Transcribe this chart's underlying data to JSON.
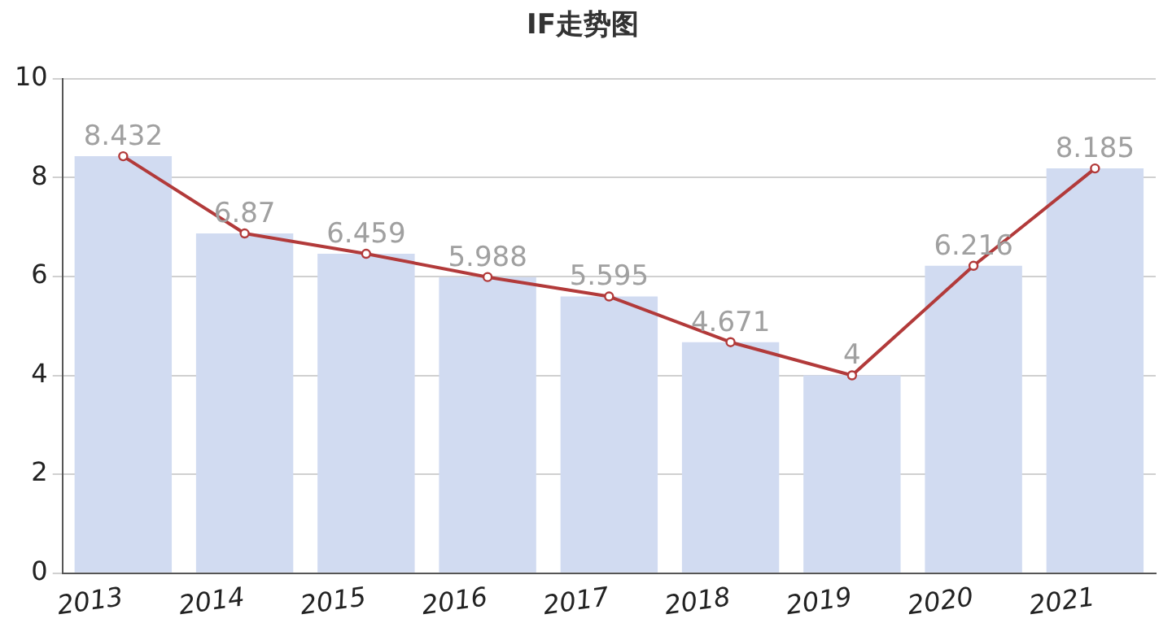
{
  "chart_data": {
    "type": "bar",
    "title": "IF走势图",
    "categories": [
      "2013",
      "2014",
      "2015",
      "2016",
      "2017",
      "2018",
      "2019",
      "2020",
      "2021"
    ],
    "series": [
      {
        "color": "#d1dbf1",
        "values": [
          8.432,
          6.87,
          6.459,
          5.988,
          5.595,
          4.671,
          4,
          6.216,
          8.185
        ],
        "value_labels": [
          "8.432",
          "6.87",
          "6.459",
          "5.988",
          "5.595",
          "4.671",
          "4",
          "6.216",
          "8.185"
        ]
      },
      {
        "type": "line",
        "color": "#b23a3a",
        "values": [
          8.432,
          6.87,
          6.459,
          5.988,
          5.595,
          4.671,
          4,
          6.216,
          8.185
        ]
      }
    ],
    "ylim": [
      0,
      10
    ],
    "yticks": [
      0,
      2,
      4,
      6,
      8,
      10
    ],
    "grid": "y",
    "legend": false,
    "marker": "circle"
  }
}
